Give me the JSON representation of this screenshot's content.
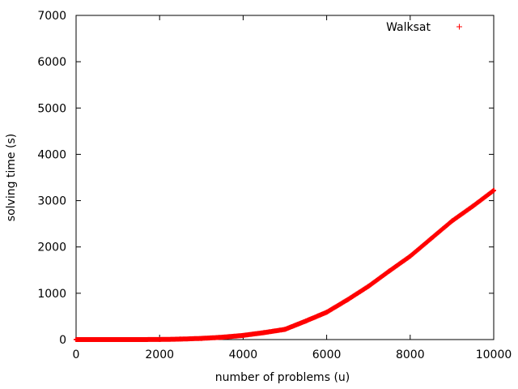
{
  "chart_data": {
    "type": "scatter",
    "title": "",
    "xlabel": "number of problems (u)",
    "ylabel": "solving time (s)",
    "xlim": [
      0,
      10000
    ],
    "ylim": [
      0,
      7000
    ],
    "xticks": [
      0,
      2000,
      4000,
      6000,
      8000,
      10000
    ],
    "yticks": [
      0,
      1000,
      2000,
      3000,
      4000,
      5000,
      6000,
      7000
    ],
    "grid": false,
    "legend_position": "top-right",
    "series": [
      {
        "name": "Walksat",
        "color": "#ff0000",
        "marker": "+",
        "x": [
          0,
          500,
          1000,
          1500,
          2000,
          2500,
          3000,
          3500,
          4000,
          4500,
          5000,
          5500,
          6000,
          6500,
          7000,
          7500,
          8000,
          8500,
          9000,
          9500,
          10000
        ],
        "y": [
          0,
          0,
          0,
          0,
          2,
          10,
          25,
          50,
          90,
          150,
          220,
          400,
          590,
          860,
          1150,
          1480,
          1800,
          2180,
          2560,
          2880,
          3220
        ]
      }
    ]
  }
}
